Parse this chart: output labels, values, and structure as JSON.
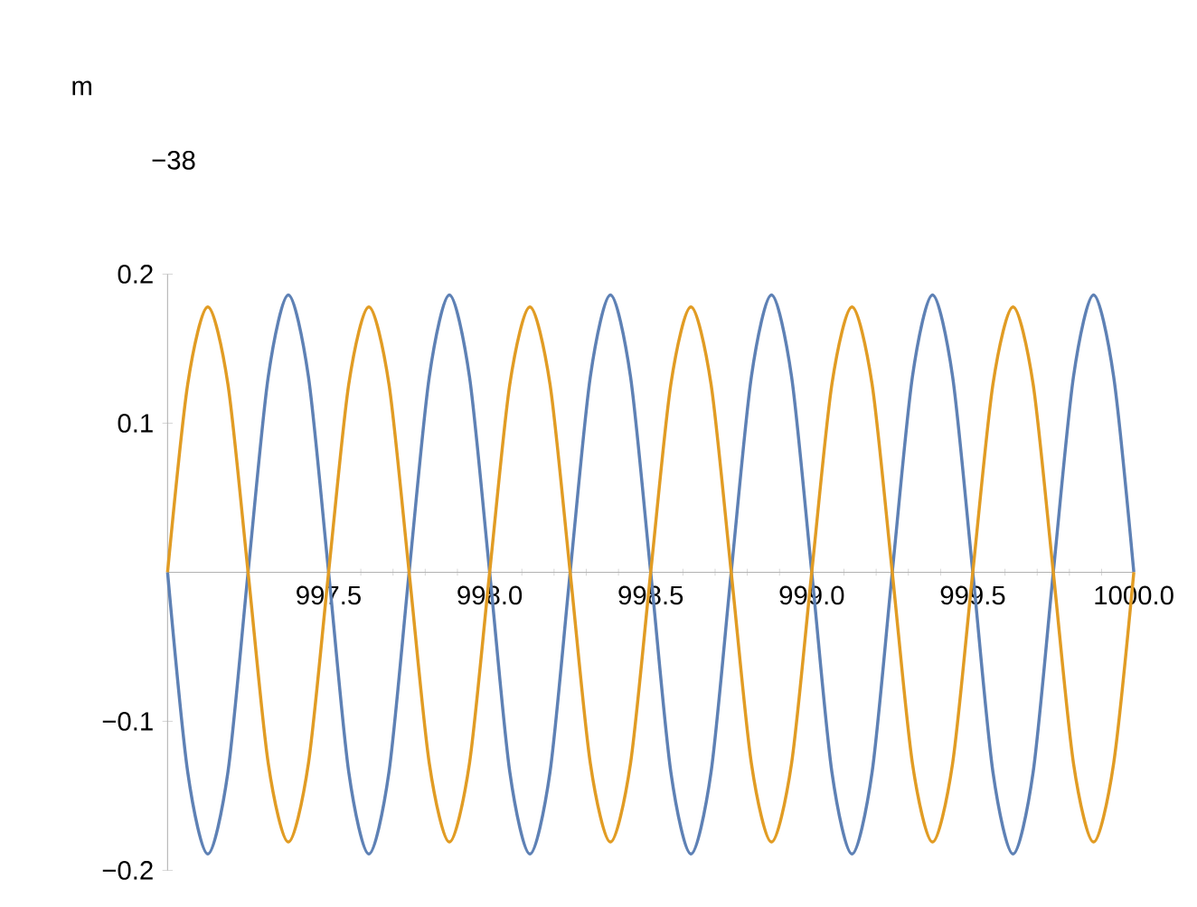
{
  "chart_data": {
    "type": "line",
    "annotations": [
      "m",
      "−38"
    ],
    "x": [
      997.0,
      997.0625,
      997.125,
      997.1875,
      997.25,
      997.3125,
      997.375,
      997.4375,
      997.5,
      997.5625,
      997.625,
      997.6875,
      997.75,
      997.8125,
      997.875,
      997.9375,
      998.0,
      998.0625,
      998.125,
      998.1875,
      998.25,
      998.3125,
      998.375,
      998.4375,
      998.5,
      998.5625,
      998.625,
      998.6875,
      998.75,
      998.8125,
      998.875,
      998.9375,
      999.0,
      999.0625,
      999.125,
      999.1875,
      999.25,
      999.3125,
      999.375,
      999.4375,
      999.5,
      999.5625,
      999.625,
      999.6875,
      999.75,
      999.8125,
      999.875,
      999.9375,
      1000.0
    ],
    "series": [
      {
        "color": "#5e81b5",
        "values": [
          0,
          -0.134,
          -0.189,
          -0.134,
          0,
          0.131,
          0.186,
          0.131,
          0,
          -0.134,
          -0.189,
          -0.134,
          0,
          0.131,
          0.186,
          0.131,
          0,
          -0.134,
          -0.189,
          -0.134,
          0,
          0.131,
          0.186,
          0.131,
          0,
          -0.134,
          -0.189,
          -0.134,
          0,
          0.131,
          0.186,
          0.131,
          0,
          -0.134,
          -0.189,
          -0.134,
          0,
          0.131,
          0.186,
          0.131,
          0,
          -0.134,
          -0.189,
          -0.134,
          0,
          0.131,
          0.186,
          0.131,
          0
        ]
      },
      {
        "color": "#e19c24",
        "values": [
          0,
          0.126,
          0.178,
          0.126,
          0,
          -0.128,
          -0.181,
          -0.128,
          0,
          0.126,
          0.178,
          0.126,
          0,
          -0.128,
          -0.181,
          -0.128,
          0,
          0.126,
          0.178,
          0.126,
          0,
          -0.128,
          -0.181,
          -0.128,
          0,
          0.126,
          0.178,
          0.126,
          0,
          -0.128,
          -0.181,
          -0.128,
          0,
          0.126,
          0.178,
          0.126,
          0,
          -0.128,
          -0.181,
          -0.128,
          0,
          0.126,
          0.178,
          0.126,
          0,
          -0.128,
          -0.181,
          -0.128,
          0
        ]
      }
    ],
    "xlim": [
      997,
      1000
    ],
    "ylim": [
      -0.2,
      0.2
    ],
    "xticks": [
      997.5,
      {
        "value": 998,
        "label": "998.0"
      },
      998.5,
      {
        "value": 999,
        "label": "999.0"
      },
      999.5,
      {
        "value": 1000,
        "label": "1000.0"
      }
    ],
    "yticks": [
      {
        "value": -0.2,
        "label": "−0.2"
      },
      {
        "value": -0.1,
        "label": "−0.1"
      },
      0.1,
      0.2
    ],
    "grid": false,
    "marker": "none",
    "line_style": "solid"
  }
}
